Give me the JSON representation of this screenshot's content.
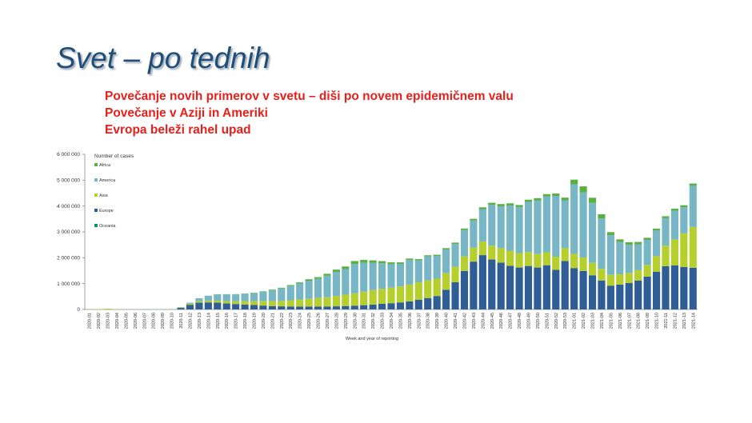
{
  "slide": {
    "title": "Svet – po tednih",
    "bullets": [
      "Povečanje novih primerov v svetu – diši po novem epidemičnem valu",
      "Povečanje v Aziji in Ameriki",
      "Evropa beleži rahel upad"
    ]
  },
  "chart_data": {
    "type": "bar",
    "stacked": true,
    "title": "",
    "legend_title": "Number of cases",
    "xlabel": "Week and year of reporting",
    "ylabel": "",
    "ylim": [
      0,
      6000000
    ],
    "yticks": [
      0,
      1000000,
      2000000,
      3000000,
      4000000,
      5000000,
      6000000
    ],
    "ytick_labels": [
      "0",
      "1 000 000",
      "2 000 000",
      "3 000 000",
      "4 000 000",
      "5 000 000",
      "6 000 000"
    ],
    "legend_position": "top-left",
    "grid": false,
    "categories": [
      "2020-01",
      "2020-02",
      "2020-03",
      "2020-04",
      "2020-05",
      "2020-06",
      "2020-07",
      "2020-08",
      "2020-09",
      "2020-10",
      "2020-11",
      "2020-12",
      "2020-13",
      "2020-14",
      "2020-15",
      "2020-16",
      "2020-17",
      "2020-18",
      "2020-19",
      "2020-20",
      "2020-21",
      "2020-22",
      "2020-23",
      "2020-24",
      "2020-25",
      "2020-26",
      "2020-27",
      "2020-28",
      "2020-29",
      "2020-30",
      "2020-31",
      "2020-32",
      "2020-33",
      "2020-34",
      "2020-35",
      "2020-36",
      "2020-37",
      "2020-38",
      "2020-39",
      "2020-40",
      "2020-41",
      "2020-42",
      "2020-43",
      "2020-44",
      "2020-45",
      "2020-46",
      "2020-47",
      "2020-48",
      "2020-49",
      "2020-50",
      "2020-51",
      "2020-52",
      "2020-53",
      "2021-01",
      "2021-02",
      "2021-03",
      "2021-04",
      "2021-05",
      "2021-06",
      "2021-07",
      "2021-08",
      "2021-09",
      "2021-10",
      "2021-11",
      "2021-12",
      "2021-13",
      "2021-14"
    ],
    "series": [
      {
        "name": "Oceania",
        "color": "#1a8c6e",
        "values": [
          0,
          0,
          0,
          0,
          0,
          0,
          0,
          0,
          0,
          0,
          0,
          1000,
          2000,
          3000,
          2000,
          1000,
          500,
          500,
          300,
          300,
          300,
          500,
          1000,
          2000,
          3000,
          4000,
          5000,
          6000,
          7000,
          7000,
          5000,
          4000,
          3000,
          2000,
          2000,
          1000,
          1000,
          1000,
          1000,
          1000,
          1000,
          1000,
          1000,
          1000,
          1000,
          1000,
          1000,
          1000,
          1000,
          1000,
          1000,
          1000,
          1000,
          1000,
          1000,
          1000,
          1000,
          1000,
          1000,
          1000,
          1000,
          1000,
          1000,
          1000,
          1000,
          1000,
          1000
        ]
      },
      {
        "name": "Europe",
        "color": "#2f5d96",
        "values": [
          0,
          0,
          0,
          0,
          0,
          0,
          0,
          0,
          0,
          0,
          60000,
          180000,
          260000,
          270000,
          260000,
          230000,
          210000,
          190000,
          170000,
          150000,
          130000,
          120000,
          115000,
          110000,
          110000,
          110000,
          110000,
          115000,
          125000,
          140000,
          160000,
          185000,
          215000,
          240000,
          270000,
          310000,
          370000,
          440000,
          520000,
          760000,
          1050000,
          1490000,
          1850000,
          2100000,
          1930000,
          1810000,
          1690000,
          1620000,
          1680000,
          1620000,
          1710000,
          1530000,
          1870000,
          1600000,
          1490000,
          1320000,
          1120000,
          920000,
          960000,
          1020000,
          1120000,
          1270000,
          1460000,
          1670000,
          1700000,
          1640000,
          1610000
        ]
      },
      {
        "name": "Asia",
        "color": "#b5cf2c",
        "values": [
          9000,
          15000,
          30000,
          10000,
          5000,
          5000,
          5000,
          5000,
          5000,
          8000,
          18000,
          40000,
          60000,
          70000,
          80000,
          90000,
          110000,
          130000,
          150000,
          170000,
          190000,
          210000,
          240000,
          270000,
          300000,
          330000,
          360000,
          400000,
          440000,
          480000,
          520000,
          560000,
          580000,
          600000,
          620000,
          650000,
          680000,
          680000,
          670000,
          640000,
          600000,
          560000,
          540000,
          530000,
          540000,
          560000,
          580000,
          560000,
          540000,
          520000,
          500000,
          510000,
          500000,
          550000,
          520000,
          480000,
          450000,
          420000,
          400000,
          390000,
          400000,
          450000,
          600000,
          800000,
          1000000,
          1300000,
          1580000
        ]
      },
      {
        "name": "America",
        "color": "#76b6c5",
        "values": [
          0,
          0,
          0,
          0,
          5000,
          8000,
          12000,
          10000,
          8000,
          8000,
          10000,
          40000,
          110000,
          190000,
          240000,
          260000,
          260000,
          280000,
          310000,
          360000,
          420000,
          480000,
          550000,
          620000,
          700000,
          740000,
          830000,
          930000,
          990000,
          1130000,
          1120000,
          1060000,
          990000,
          910000,
          870000,
          960000,
          850000,
          930000,
          880000,
          920000,
          880000,
          1020000,
          1050000,
          1250000,
          1580000,
          1620000,
          1750000,
          1780000,
          1940000,
          2080000,
          2160000,
          2350000,
          1850000,
          2690000,
          2510000,
          2320000,
          1950000,
          1530000,
          1250000,
          1090000,
          1000000,
          970000,
          990000,
          1060000,
          1120000,
          1010000,
          1590000
        ]
      },
      {
        "name": "Africa",
        "color": "#59b142",
        "values": [
          0,
          0,
          0,
          0,
          0,
          0,
          0,
          0,
          0,
          0,
          0,
          0,
          0,
          0,
          8000,
          10000,
          12000,
          13000,
          16000,
          20000,
          26000,
          30000,
          38000,
          45000,
          55000,
          65000,
          75000,
          90000,
          100000,
          115000,
          110000,
          90000,
          80000,
          70000,
          60000,
          50000,
          45000,
          45000,
          45000,
          50000,
          55000,
          60000,
          65000,
          70000,
          75000,
          85000,
          85000,
          80000,
          85000,
          85000,
          90000,
          95000,
          105000,
          180000,
          240000,
          200000,
          160000,
          120000,
          100000,
          100000,
          90000,
          80000,
          75000,
          75000,
          75000,
          80000,
          90000
        ]
      }
    ]
  }
}
